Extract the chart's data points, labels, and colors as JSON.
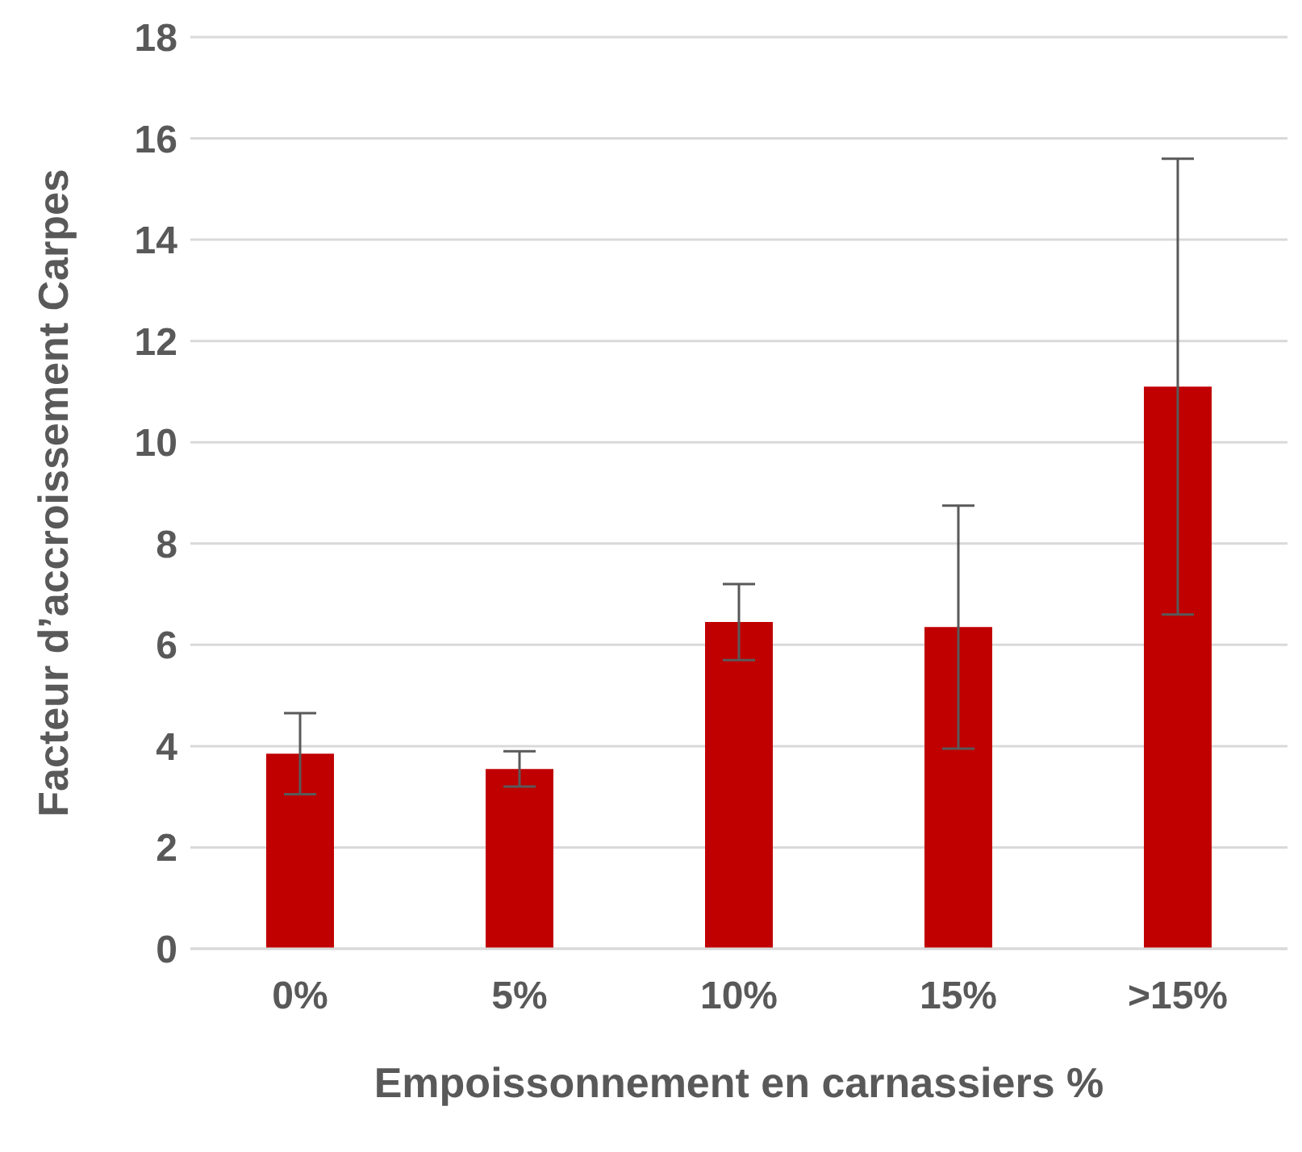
{
  "chart_data": {
    "type": "bar",
    "xlabel": "Empoissonnement en carnassiers %",
    "ylabel": "Facteur d’accroissement Carpes",
    "categories": [
      "0%",
      "5%",
      "10%",
      "15%",
      ">15%"
    ],
    "values": [
      3.85,
      3.55,
      6.45,
      6.35,
      11.1
    ],
    "errors": [
      0.8,
      0.35,
      0.75,
      2.4,
      4.5
    ],
    "color": "#c00000",
    "ylim": [
      0,
      18
    ],
    "yticks": [
      0,
      2,
      4,
      6,
      8,
      10,
      12,
      14,
      16,
      18
    ],
    "grid": "y"
  }
}
